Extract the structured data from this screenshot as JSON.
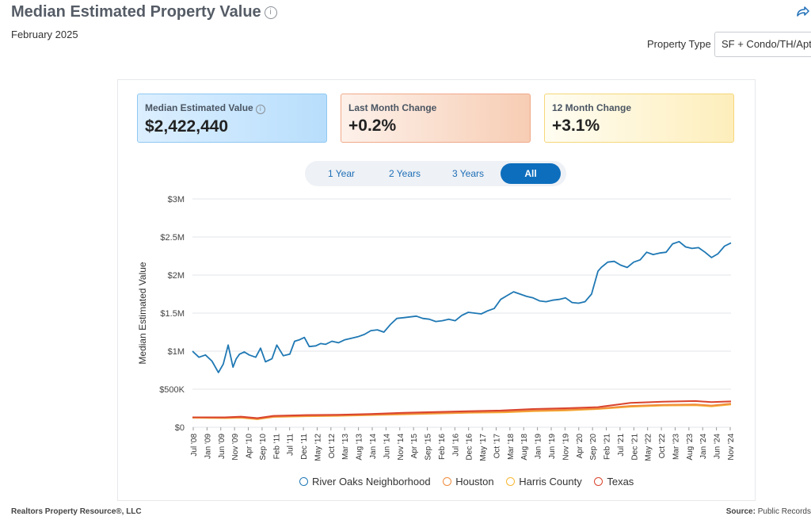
{
  "header": {
    "title": "Median Estimated Property Value",
    "info_icon": "i",
    "subtitle": "February 2025",
    "share_icon": "share-icon",
    "property_type_label": "Property Type",
    "property_type_value": "SF + Condo/TH/Apt"
  },
  "cards": [
    {
      "label": "Median Estimated Value",
      "value": "$2,422,440",
      "has_info": true
    },
    {
      "label": "Last Month Change",
      "value": "+0.2%"
    },
    {
      "label": "12 Month Change",
      "value": "+3.1%"
    }
  ],
  "ranges": {
    "items": [
      "1 Year",
      "2 Years",
      "3 Years",
      "All"
    ],
    "active": "All"
  },
  "footer": {
    "left": "Realtors Property Resource®, LLC",
    "right_label": "Source:",
    "right_value": "Public Records"
  },
  "colors": {
    "river_oaks": "#1f78b4",
    "houston": "#f08c3c",
    "harris": "#f7b733",
    "texas": "#d9442e",
    "accent": "#0d6ebd"
  },
  "chart_data": {
    "type": "line",
    "ylabel": "Median Estimated Value",
    "xlabel": "",
    "ylim": [
      0,
      3000000
    ],
    "y_ticks": [
      "$0",
      "$500K",
      "$1M",
      "$1.5M",
      "$2M",
      "$2.5M",
      "$3M"
    ],
    "x_ticks": [
      "Jul '08",
      "Jan '09",
      "Jun '09",
      "Nov '09",
      "Apr '10",
      "Sep '10",
      "Feb '11",
      "Jul '11",
      "Dec '11",
      "May '12",
      "Oct '12",
      "Mar '13",
      "Aug '13",
      "Jan '14",
      "Jun '14",
      "Nov '14",
      "Apr '15",
      "Sep '15",
      "Feb '16",
      "Jul '16",
      "Dec '16",
      "May '17",
      "Oct '17",
      "Mar '18",
      "Aug '18",
      "Jan '19",
      "Jun '19",
      "Nov '19",
      "Apr '20",
      "Sep '20",
      "Feb '21",
      "Jul '21",
      "Dec '21",
      "May '22",
      "Oct '22",
      "Mar '23",
      "Aug '23",
      "Jan '24",
      "Jun '24",
      "Nov '24"
    ],
    "legend": [
      "River Oaks Neighborhood",
      "Houston",
      "Harris County",
      "Texas"
    ],
    "series": [
      {
        "name": "River Oaks Neighborhood",
        "x": [
          2008.5,
          2008.7,
          2008.9,
          2009.1,
          2009.3,
          2009.45,
          2009.6,
          2009.75,
          2009.85,
          2009.95,
          2010.1,
          2010.25,
          2010.45,
          2010.6,
          2010.75,
          2010.85,
          2010.95,
          2011.1,
          2011.3,
          2011.5,
          2011.65,
          2011.8,
          2011.95,
          2012.1,
          2012.3,
          2012.45,
          2012.6,
          2012.8,
          2013.0,
          2013.2,
          2013.4,
          2013.6,
          2013.8,
          2014.0,
          2014.2,
          2014.4,
          2014.6,
          2014.8,
          2015.0,
          2015.2,
          2015.4,
          2015.6,
          2015.8,
          2016.0,
          2016.2,
          2016.4,
          2016.6,
          2016.8,
          2017.0,
          2017.2,
          2017.4,
          2017.6,
          2017.8,
          2018.0,
          2018.2,
          2018.4,
          2018.6,
          2018.8,
          2019.0,
          2019.2,
          2019.4,
          2019.6,
          2019.8,
          2020.0,
          2020.2,
          2020.4,
          2020.6,
          2020.8,
          2021.0,
          2021.1,
          2021.3,
          2021.5,
          2021.7,
          2021.9,
          2022.1,
          2022.3,
          2022.5,
          2022.7,
          2022.9,
          2023.1,
          2023.3,
          2023.5,
          2023.7,
          2023.9,
          2024.1,
          2024.3,
          2024.5,
          2024.7,
          2024.9,
          2025.1
        ],
        "y": [
          1000000,
          920000,
          950000,
          870000,
          720000,
          830000,
          1080000,
          790000,
          900000,
          960000,
          990000,
          950000,
          920000,
          1040000,
          860000,
          880000,
          900000,
          1080000,
          940000,
          960000,
          1130000,
          1150000,
          1180000,
          1060000,
          1070000,
          1100000,
          1090000,
          1130000,
          1110000,
          1150000,
          1170000,
          1190000,
          1220000,
          1270000,
          1280000,
          1250000,
          1350000,
          1430000,
          1440000,
          1450000,
          1460000,
          1430000,
          1420000,
          1390000,
          1400000,
          1420000,
          1400000,
          1470000,
          1510000,
          1500000,
          1490000,
          1530000,
          1560000,
          1680000,
          1730000,
          1780000,
          1750000,
          1720000,
          1700000,
          1660000,
          1650000,
          1670000,
          1680000,
          1700000,
          1640000,
          1630000,
          1650000,
          1750000,
          2050000,
          2100000,
          2170000,
          2180000,
          2130000,
          2100000,
          2170000,
          2200000,
          2300000,
          2270000,
          2290000,
          2300000,
          2410000,
          2440000,
          2370000,
          2350000,
          2360000,
          2300000,
          2230000,
          2280000,
          2380000,
          2422440
        ]
      },
      {
        "name": "Houston",
        "x": [
          2008.5,
          2009.5,
          2010.0,
          2010.5,
          2011.0,
          2012.0,
          2013.0,
          2014.0,
          2015.0,
          2016.0,
          2017.0,
          2018.0,
          2019.0,
          2020.0,
          2021.0,
          2022.0,
          2023.0,
          2024.0,
          2024.5,
          2025.1
        ],
        "y": [
          130000,
          125000,
          130000,
          110000,
          140000,
          150000,
          155000,
          165000,
          175000,
          185000,
          195000,
          205000,
          220000,
          230000,
          245000,
          280000,
          295000,
          300000,
          285000,
          310000
        ]
      },
      {
        "name": "Harris County",
        "x": [
          2008.5,
          2009.5,
          2010.0,
          2010.5,
          2011.0,
          2012.0,
          2013.0,
          2014.0,
          2015.0,
          2016.0,
          2017.0,
          2018.0,
          2019.0,
          2020.0,
          2021.0,
          2022.0,
          2023.0,
          2024.0,
          2024.5,
          2025.1
        ],
        "y": [
          125000,
          120000,
          125000,
          105000,
          135000,
          145000,
          150000,
          160000,
          170000,
          180000,
          190000,
          195000,
          210000,
          220000,
          240000,
          270000,
          285000,
          290000,
          275000,
          300000
        ]
      },
      {
        "name": "Texas",
        "x": [
          2008.5,
          2009.5,
          2010.0,
          2010.5,
          2011.0,
          2012.0,
          2013.0,
          2014.0,
          2015.0,
          2016.0,
          2017.0,
          2018.0,
          2019.0,
          2020.0,
          2021.0,
          2022.0,
          2023.0,
          2024.0,
          2024.5,
          2025.1
        ],
        "y": [
          130000,
          130000,
          140000,
          120000,
          150000,
          160000,
          165000,
          175000,
          190000,
          200000,
          210000,
          220000,
          240000,
          250000,
          265000,
          320000,
          335000,
          345000,
          330000,
          340000
        ]
      }
    ]
  }
}
